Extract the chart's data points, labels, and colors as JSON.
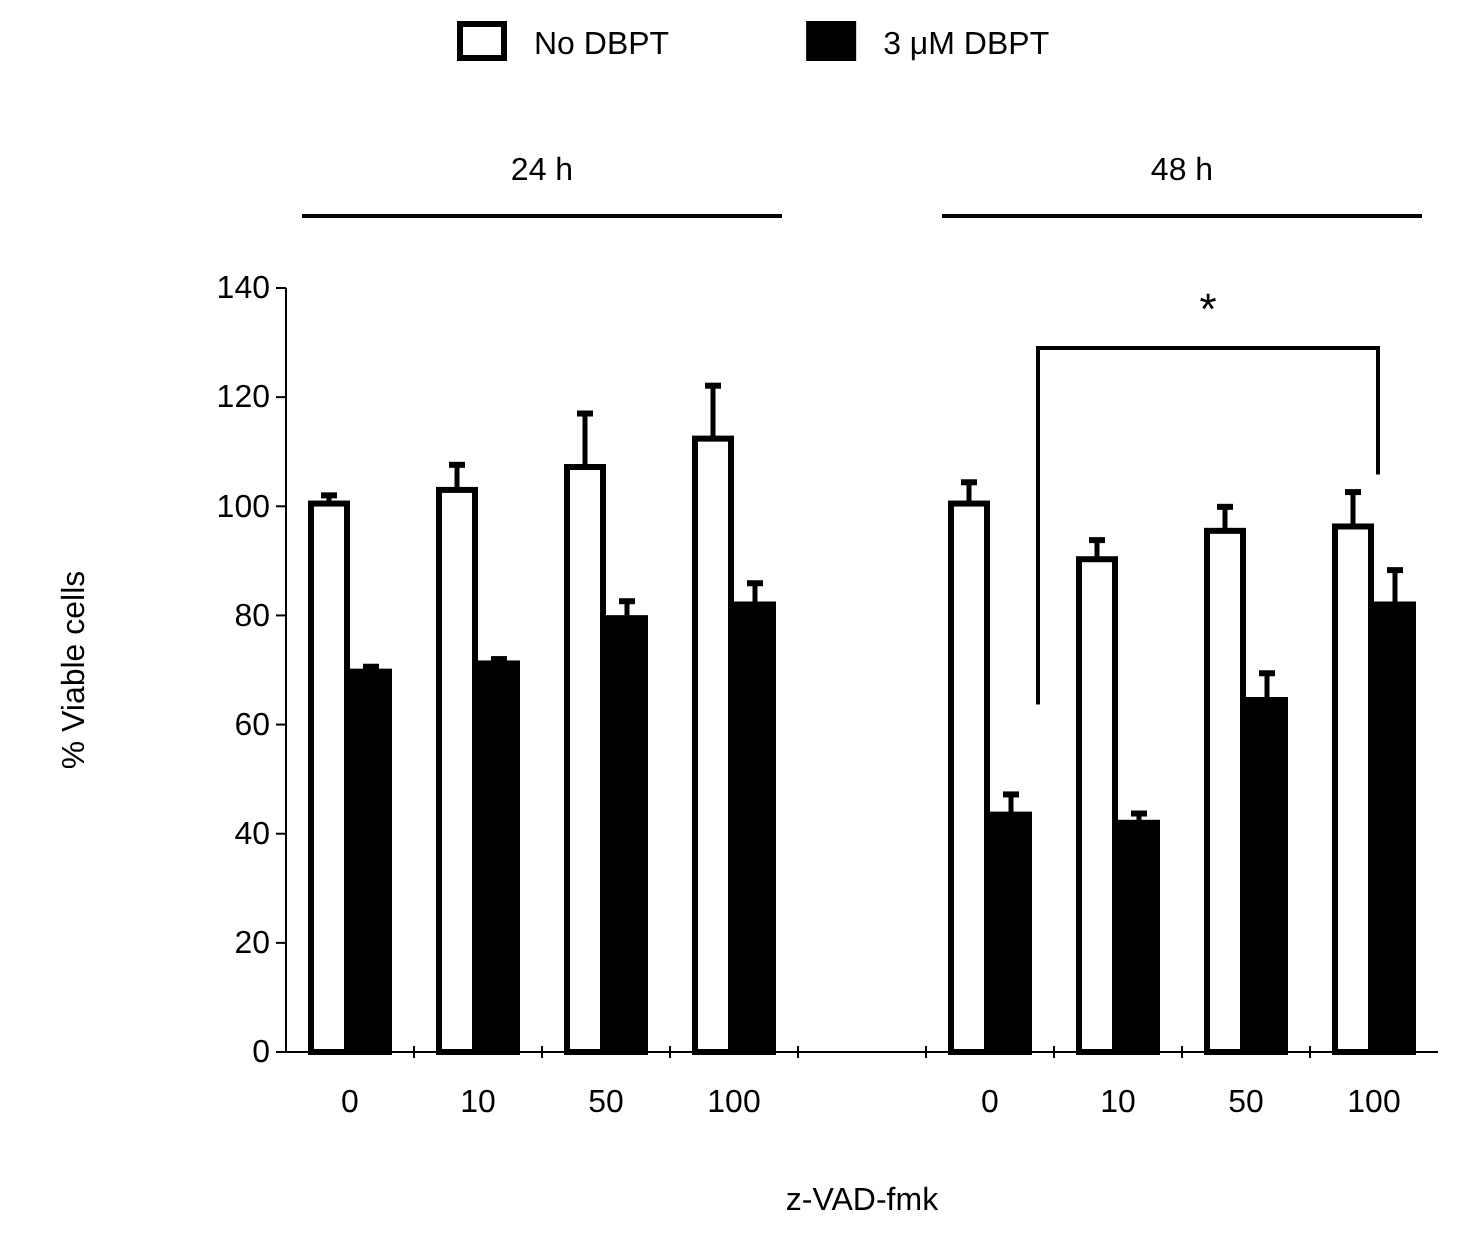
{
  "chart_data": {
    "type": "bar",
    "categories": [
      "0",
      "10",
      "50",
      "100",
      null,
      "0",
      "10",
      "50",
      "100"
    ],
    "series": [
      {
        "name": "No DBPT",
        "color": "#ffffff",
        "values": [
          100.5,
          103,
          107.2,
          112.4,
          null,
          100.5,
          90.3,
          95.5,
          96.3
        ],
        "errors": [
          [
            100.5,
            102
          ],
          [
            103,
            107.6
          ],
          [
            107.2,
            117
          ],
          [
            112.4,
            122.1
          ],
          null,
          [
            100.5,
            104.4
          ],
          [
            90.3,
            93.8
          ],
          [
            95.5,
            99.9
          ],
          [
            96.3,
            102.6
          ]
        ]
      },
      {
        "name": "3 μM DBPT",
        "color": "#000000",
        "values": [
          69.7,
          71.2,
          79.5,
          82,
          null,
          43.5,
          42,
          64.5,
          82
        ],
        "errors": [
          [
            69.7,
            70.6
          ],
          [
            71.2,
            72
          ],
          [
            79.5,
            82.6
          ],
          [
            82,
            85.9
          ],
          null,
          [
            43.5,
            47.2
          ],
          [
            42,
            43.7
          ],
          [
            64.5,
            69.4
          ],
          [
            82,
            88.3
          ]
        ]
      }
    ],
    "xlabel": "z-VAD-fmk",
    "ylabel": "% Viable cells",
    "ylim": [
      0,
      140
    ],
    "yticks": [
      0,
      20,
      40,
      60,
      80,
      100,
      120,
      140
    ],
    "annotations": [
      "24 h",
      "48 h",
      "*"
    ],
    "legend": "top",
    "grid": false
  }
}
